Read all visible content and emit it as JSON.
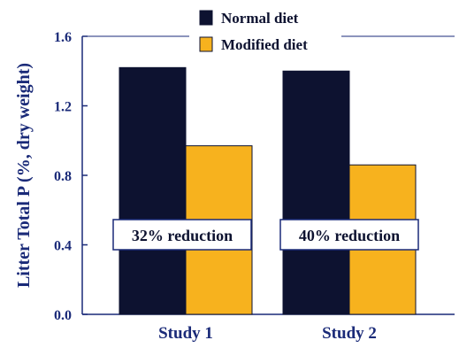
{
  "chart_data": {
    "type": "bar",
    "title": "",
    "xlabel": "",
    "ylabel": "Litter Total P (%, dry weight)",
    "categories": [
      "Study 1",
      "Study 2"
    ],
    "series": [
      {
        "name": "Normal diet",
        "values": [
          1.42,
          1.4
        ],
        "color": "#0d1230"
      },
      {
        "name": "Modified diet",
        "values": [
          0.97,
          0.86
        ],
        "color": "#f7b21e"
      }
    ],
    "ylim": [
      0,
      1.6
    ],
    "yticks": [
      "0.0",
      "0.4",
      "0.8",
      "1.2",
      "1.6"
    ],
    "legend_position": "top",
    "grid": false,
    "annotations": [
      "32% reduction",
      "40% reduction"
    ],
    "colors": {
      "axis": "#1a2a78",
      "text": "#1a2a78",
      "annotation_text": "#0d1230",
      "annotation_border": "#1a2a78"
    }
  }
}
